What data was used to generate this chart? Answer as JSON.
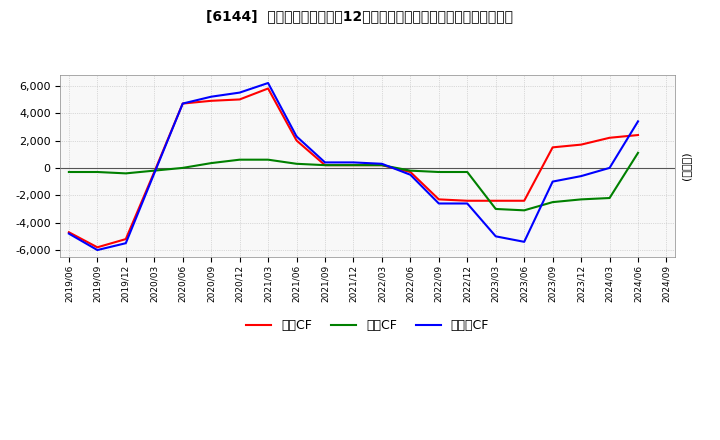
{
  "title": "[6144]  キャッシュフローの12か月移動合計の対前年同期増減額の推移",
  "ylabel": "(百万円)",
  "ylim": [
    -6500,
    6800
  ],
  "yticks": [
    -6000,
    -4000,
    -2000,
    0,
    2000,
    4000,
    6000
  ],
  "legend": [
    "営業CF",
    "投資CF",
    "フリーCF"
  ],
  "legend_colors": [
    "#ff0000",
    "#008000",
    "#0000ff"
  ],
  "dates": [
    "2019/06",
    "2019/09",
    "2019/12",
    "2020/03",
    "2020/06",
    "2020/09",
    "2020/12",
    "2021/03",
    "2021/06",
    "2021/09",
    "2021/12",
    "2022/03",
    "2022/06",
    "2022/09",
    "2022/12",
    "2023/03",
    "2023/06",
    "2023/09",
    "2023/12",
    "2024/03",
    "2024/06",
    "2024/09"
  ],
  "eigyo_cf": [
    -4700,
    -5800,
    -5200,
    -300,
    4700,
    4900,
    5000,
    5800,
    2000,
    200,
    200,
    200,
    -300,
    -2300,
    -2400,
    -2400,
    -2400,
    1500,
    1700,
    2200,
    2400,
    null
  ],
  "toshi_cf": [
    -300,
    -300,
    -400,
    -200,
    0,
    350,
    600,
    600,
    300,
    200,
    200,
    200,
    -200,
    -300,
    -300,
    -3000,
    -3100,
    -2500,
    -2300,
    -2200,
    1100,
    null
  ],
  "free_cf": [
    -4800,
    -6000,
    -5500,
    -400,
    4700,
    5200,
    5500,
    6200,
    2300,
    400,
    400,
    300,
    -500,
    -2600,
    -2600,
    -5000,
    -5400,
    -1000,
    -600,
    0,
    3400,
    null
  ],
  "background_color": "#ffffff",
  "grid_color": "#bbbbbb",
  "plot_bg_color": "#f8f8f8"
}
